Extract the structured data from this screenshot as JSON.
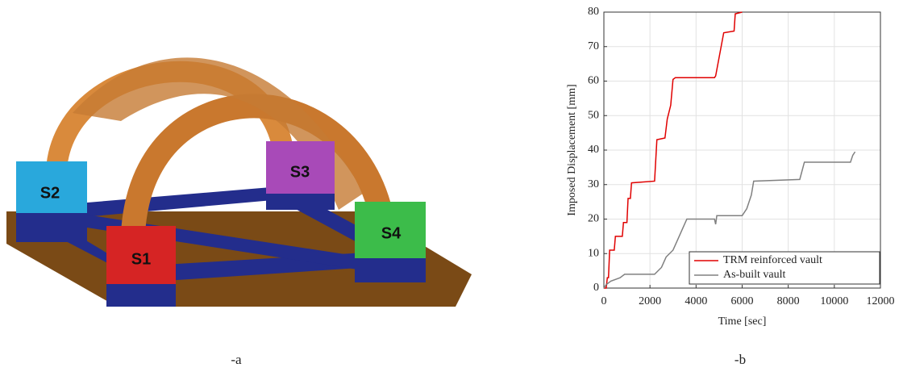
{
  "figure": {
    "support_labels": [
      "S1",
      "S2",
      "S3",
      "S4"
    ],
    "captions": [
      "-a",
      "-b"
    ]
  },
  "chart_data": {
    "type": "line",
    "xlabel": "Time [sec]",
    "ylabel": "Imposed Displacement [mm]",
    "xlim": [
      0,
      12000
    ],
    "ylim": [
      0,
      80
    ],
    "xticks": [
      0,
      2000,
      4000,
      6000,
      8000,
      10000,
      12000
    ],
    "yticks": [
      0,
      10,
      20,
      30,
      40,
      50,
      60,
      70,
      80
    ],
    "grid": true,
    "legend": "lower right",
    "series": [
      {
        "name": "TRM reinforced vault",
        "color": "#e00000",
        "x": [
          0,
          100,
          150,
          200,
          250,
          450,
          500,
          800,
          850,
          1000,
          1050,
          1150,
          1200,
          2200,
          2300,
          2650,
          2750,
          2900,
          3000,
          3100,
          3500,
          4800,
          4850,
          5200,
          5650,
          5700,
          6000
        ],
        "values": [
          0,
          0,
          3,
          3,
          11,
          11,
          15,
          15,
          19,
          19,
          26,
          26,
          30.5,
          31,
          43,
          43.5,
          49,
          53,
          60.5,
          61,
          61,
          61,
          61.5,
          74,
          74.5,
          79.5,
          80
        ]
      },
      {
        "name": "As-built vault",
        "color": "#808080",
        "x": [
          0,
          100,
          300,
          500,
          700,
          900,
          2200,
          2500,
          2700,
          3000,
          3200,
          3400,
          3600,
          4800,
          4850,
          4900,
          6000,
          6200,
          6400,
          6500,
          8500,
          8700,
          10700,
          10800,
          10900
        ],
        "values": [
          0,
          1,
          2,
          2.5,
          3,
          4,
          4,
          6,
          9,
          11,
          14,
          17,
          20,
          20,
          18.5,
          21,
          21,
          23,
          27,
          31,
          31.5,
          36.5,
          36.5,
          38.5,
          39.5
        ]
      }
    ]
  }
}
